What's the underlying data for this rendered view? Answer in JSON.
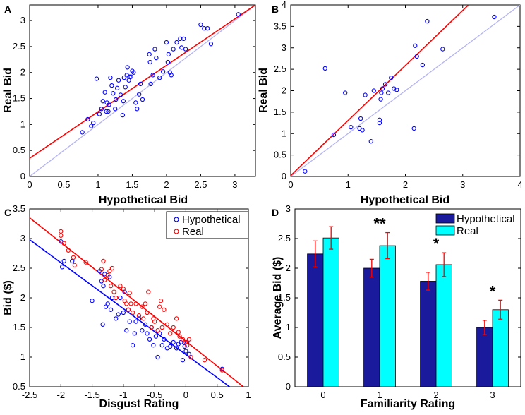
{
  "figure": {
    "panel_letters": [
      "A",
      "B",
      "C",
      "D"
    ]
  },
  "colors": {
    "blue": "#0000ff",
    "red": "#ff0000",
    "identity": "#b4b4f5",
    "bar_hyp": "#1a1a9c",
    "bar_real": "#00ffff",
    "errbar": "#ff0000"
  },
  "chart_data": [
    {
      "panel": "A",
      "type": "scatter",
      "xlabel": "Hypothetical Bid",
      "ylabel": "Real Bid",
      "xlim": [
        0,
        3.3
      ],
      "ylim": [
        0,
        3.3
      ],
      "xticks": [
        0,
        0.5,
        1,
        1.5,
        2,
        2.5,
        3
      ],
      "yticks": [
        0,
        0.5,
        1,
        1.5,
        2,
        2.5,
        3
      ],
      "points": [
        [
          0.77,
          0.85
        ],
        [
          0.85,
          1.1
        ],
        [
          0.9,
          0.97
        ],
        [
          0.93,
          1.03
        ],
        [
          0.98,
          1.88
        ],
        [
          1.02,
          1.2
        ],
        [
          1.05,
          1.3
        ],
        [
          1.07,
          1.45
        ],
        [
          1.1,
          1.62
        ],
        [
          1.12,
          1.25
        ],
        [
          1.13,
          1.42
        ],
        [
          1.15,
          1.25
        ],
        [
          1.16,
          1.38
        ],
        [
          1.18,
          1.9
        ],
        [
          1.2,
          1.75
        ],
        [
          1.22,
          1.6
        ],
        [
          1.25,
          1.3
        ],
        [
          1.26,
          1.48
        ],
        [
          1.28,
          1.7
        ],
        [
          1.3,
          1.85
        ],
        [
          1.33,
          1.57
        ],
        [
          1.36,
          1.18
        ],
        [
          1.37,
          1.45
        ],
        [
          1.38,
          1.9
        ],
        [
          1.4,
          1.72
        ],
        [
          1.42,
          1.95
        ],
        [
          1.43,
          2.1
        ],
        [
          1.45,
          1.85
        ],
        [
          1.46,
          1.92
        ],
        [
          1.48,
          1.92
        ],
        [
          1.5,
          2.03
        ],
        [
          1.52,
          2.0
        ],
        [
          1.55,
          1.42
        ],
        [
          1.57,
          1.3
        ],
        [
          1.6,
          1.58
        ],
        [
          1.62,
          1.78
        ],
        [
          1.65,
          1.48
        ],
        [
          1.75,
          2.35
        ],
        [
          1.76,
          2.2
        ],
        [
          1.77,
          1.78
        ],
        [
          1.8,
          1.95
        ],
        [
          1.83,
          2.45
        ],
        [
          1.85,
          2.28
        ],
        [
          1.9,
          1.9
        ],
        [
          1.95,
          2.02
        ],
        [
          2.0,
          2.58
        ],
        [
          2.02,
          2.2
        ],
        [
          2.03,
          2.35
        ],
        [
          2.05,
          2.0
        ],
        [
          2.07,
          1.95
        ],
        [
          2.1,
          2.45
        ],
        [
          2.15,
          2.58
        ],
        [
          2.2,
          2.65
        ],
        [
          2.22,
          2.48
        ],
        [
          2.25,
          2.65
        ],
        [
          2.28,
          2.45
        ],
        [
          2.5,
          2.92
        ],
        [
          2.55,
          2.85
        ],
        [
          2.6,
          2.85
        ],
        [
          2.65,
          2.55
        ],
        [
          3.05,
          3.12
        ]
      ],
      "lines": [
        {
          "color": "red",
          "x": [
            0,
            3.3
          ],
          "y": [
            0.35,
            3.3
          ]
        },
        {
          "color": "identity",
          "x": [
            0,
            3.3
          ],
          "y": [
            0,
            3.3
          ]
        }
      ]
    },
    {
      "panel": "B",
      "type": "scatter",
      "xlabel": "Hypothetical Bid",
      "ylabel": "Real Bid",
      "xlim": [
        0,
        4
      ],
      "ylim": [
        0,
        4
      ],
      "xticks": [
        0,
        1,
        2,
        3,
        4
      ],
      "yticks": [
        0,
        0.5,
        1,
        1.5,
        2,
        2.5,
        3,
        3.5,
        4
      ],
      "points": [
        [
          0.25,
          0.12
        ],
        [
          0.6,
          2.52
        ],
        [
          0.75,
          0.97
        ],
        [
          0.95,
          1.95
        ],
        [
          1.05,
          1.15
        ],
        [
          1.2,
          1.12
        ],
        [
          1.22,
          1.35
        ],
        [
          1.25,
          1.08
        ],
        [
          1.3,
          1.9
        ],
        [
          1.4,
          0.82
        ],
        [
          1.45,
          2.0
        ],
        [
          1.55,
          1.25
        ],
        [
          1.55,
          1.32
        ],
        [
          1.57,
          1.8
        ],
        [
          1.58,
          1.95
        ],
        [
          1.6,
          2.05
        ],
        [
          1.65,
          2.15
        ],
        [
          1.7,
          1.95
        ],
        [
          1.8,
          2.05
        ],
        [
          1.85,
          2.02
        ],
        [
          1.75,
          2.3
        ],
        [
          2.15,
          1.12
        ],
        [
          2.17,
          3.05
        ],
        [
          2.2,
          2.8
        ],
        [
          2.3,
          2.6
        ],
        [
          2.38,
          3.62
        ],
        [
          2.65,
          2.97
        ],
        [
          3.55,
          3.72
        ]
      ],
      "lines": [
        {
          "color": "red",
          "x": [
            0,
            3.1
          ],
          "y": [
            0.02,
            4
          ]
        },
        {
          "color": "identity",
          "x": [
            0,
            4
          ],
          "y": [
            0,
            4
          ]
        }
      ]
    },
    {
      "panel": "C",
      "type": "scatter",
      "xlabel": "Disgust Rating",
      "ylabel": "Bid ($)",
      "xlim": [
        -2.5,
        1
      ],
      "ylim": [
        0.5,
        3.5
      ],
      "xticks": [
        -2.5,
        -2,
        -1.5,
        -1,
        -0.5,
        0,
        0.5,
        1
      ],
      "yticks": [
        0.5,
        1,
        1.5,
        2,
        2.5,
        3,
        3.5
      ],
      "legend": {
        "position": "top-right",
        "entries": [
          "Hypothetical",
          "Real"
        ]
      },
      "series": [
        {
          "name": "Hypothetical",
          "color": "blue",
          "points": [
            [
              -2.0,
              2.95
            ],
            [
              -1.98,
              2.52
            ],
            [
              -1.95,
              2.62
            ],
            [
              -1.82,
              2.62
            ],
            [
              -1.5,
              1.95
            ],
            [
              -1.38,
              2.45
            ],
            [
              -1.35,
              2.28
            ],
            [
              -1.33,
              1.55
            ],
            [
              -1.32,
              2.2
            ],
            [
              -1.3,
              2.4
            ],
            [
              -1.28,
              1.85
            ],
            [
              -1.25,
              1.9
            ],
            [
              -1.22,
              2.35
            ],
            [
              -1.2,
              1.8
            ],
            [
              -1.18,
              2.0
            ],
            [
              -1.12,
              1.65
            ],
            [
              -1.08,
              1.72
            ],
            [
              -1.05,
              2.0
            ],
            [
              -1.0,
              1.75
            ],
            [
              -0.98,
              2.1
            ],
            [
              -0.95,
              1.45
            ],
            [
              -0.92,
              1.8
            ],
            [
              -0.9,
              1.6
            ],
            [
              -0.85,
              1.2
            ],
            [
              -0.82,
              1.4
            ],
            [
              -0.8,
              1.6
            ],
            [
              -0.75,
              1.65
            ],
            [
              -0.7,
              1.45
            ],
            [
              -0.65,
              1.55
            ],
            [
              -0.62,
              1.4
            ],
            [
              -0.58,
              1.3
            ],
            [
              -0.55,
              1.5
            ],
            [
              -0.52,
              1.2
            ],
            [
              -0.48,
              1.35
            ],
            [
              -0.45,
              1.0
            ],
            [
              -0.42,
              1.4
            ],
            [
              -0.38,
              1.2
            ],
            [
              -0.35,
              1.3
            ],
            [
              -0.3,
              1.15
            ],
            [
              -0.25,
              1.18
            ],
            [
              -0.2,
              1.25
            ],
            [
              -0.15,
              1.15
            ],
            [
              -0.12,
              1.22
            ],
            [
              -0.08,
              1.25
            ],
            [
              -0.05,
              0.95
            ],
            [
              -0.02,
              1.18
            ],
            [
              0.0,
              1.1
            ],
            [
              0.02,
              1.25
            ],
            [
              0.05,
              1.05
            ],
            [
              0.58,
              0.8
            ]
          ]
        },
        {
          "name": "Real",
          "color": "red",
          "points": [
            [
              -2.0,
              3.12
            ],
            [
              -2.0,
              3.05
            ],
            [
              -1.95,
              2.92
            ],
            [
              -1.88,
              2.8
            ],
            [
              -1.8,
              2.68
            ],
            [
              -1.78,
              2.55
            ],
            [
              -1.6,
              2.6
            ],
            [
              -1.35,
              2.48
            ],
            [
              -1.32,
              2.62
            ],
            [
              -1.3,
              2.3
            ],
            [
              -1.25,
              2.38
            ],
            [
              -1.22,
              2.45
            ],
            [
              -1.2,
              2.2
            ],
            [
              -1.18,
              2.5
            ],
            [
              -1.15,
              2.1
            ],
            [
              -1.12,
              2.0
            ],
            [
              -1.05,
              2.2
            ],
            [
              -1.0,
              2.15
            ],
            [
              -0.98,
              1.95
            ],
            [
              -0.95,
              1.9
            ],
            [
              -0.92,
              1.8
            ],
            [
              -0.9,
              2.08
            ],
            [
              -0.88,
              1.9
            ],
            [
              -0.85,
              1.75
            ],
            [
              -0.8,
              1.9
            ],
            [
              -0.75,
              1.7
            ],
            [
              -0.7,
              1.85
            ],
            [
              -0.68,
              1.65
            ],
            [
              -0.65,
              1.9
            ],
            [
              -0.62,
              1.75
            ],
            [
              -0.6,
              2.1
            ],
            [
              -0.55,
              1.5
            ],
            [
              -0.52,
              1.65
            ],
            [
              -0.5,
              1.6
            ],
            [
              -0.45,
              1.45
            ],
            [
              -0.42,
              1.85
            ],
            [
              -0.4,
              1.95
            ],
            [
              -0.38,
              1.5
            ],
            [
              -0.35,
              1.8
            ],
            [
              -0.3,
              1.55
            ],
            [
              -0.25,
              1.4
            ],
            [
              -0.2,
              1.5
            ],
            [
              -0.15,
              1.65
            ],
            [
              -0.12,
              1.42
            ],
            [
              -0.1,
              1.35
            ],
            [
              -0.05,
              1.3
            ],
            [
              0.0,
              1.25
            ],
            [
              0.02,
              1.2
            ],
            [
              0.05,
              1.3
            ],
            [
              0.08,
              1.0
            ],
            [
              0.3,
              0.95
            ],
            [
              0.58,
              0.78
            ]
          ]
        }
      ],
      "lines": [
        {
          "color": "blue",
          "x": [
            -2.5,
            0.7
          ],
          "y": [
            2.98,
            0.5
          ]
        },
        {
          "color": "red",
          "x": [
            -2.5,
            0.92
          ],
          "y": [
            3.35,
            0.5
          ]
        }
      ]
    },
    {
      "panel": "D",
      "type": "bar",
      "xlabel": "Familiarity Rating",
      "ylabel": "Average Bid ($)",
      "categories": [
        "0",
        "1",
        "2",
        "3"
      ],
      "ylim": [
        0,
        3
      ],
      "yticks": [
        0,
        0.5,
        1,
        1.5,
        2,
        2.5,
        3
      ],
      "legend": {
        "position": "top-right",
        "entries": [
          "Hypothetical",
          "Real"
        ]
      },
      "series": [
        {
          "name": "Hypothetical",
          "color": "bar_hyp",
          "values": [
            2.24,
            2.0,
            1.78,
            1.0
          ],
          "errors": [
            0.22,
            0.15,
            0.15,
            0.12
          ]
        },
        {
          "name": "Real",
          "color": "bar_real",
          "values": [
            2.51,
            2.38,
            2.06,
            1.3
          ],
          "errors": [
            0.19,
            0.22,
            0.2,
            0.16
          ]
        }
      ],
      "significance": [
        "",
        "**",
        "*",
        "*"
      ]
    }
  ]
}
